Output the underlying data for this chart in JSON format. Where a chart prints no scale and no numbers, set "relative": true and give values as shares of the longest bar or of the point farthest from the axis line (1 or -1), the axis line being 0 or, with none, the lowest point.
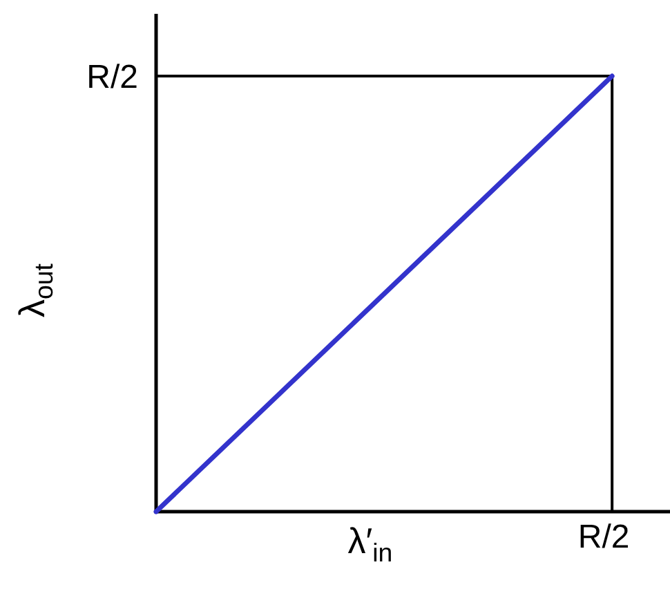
{
  "chart_data": {
    "type": "line",
    "relative": true,
    "xlabel": "λ′$_{in}$",
    "ylabel": "λ$_{out}$",
    "categories": [
      null,
      null
    ],
    "series": [
      {
        "color": "#3333cc",
        "values": [
          0,
          1
        ]
      }
    ],
    "ref_lines": [
      {
        "axis": "y",
        "value": 1,
        "label": "R/2",
        "color": "#000000"
      }
    ],
    "annotations": [
      "R/2"
    ]
  }
}
